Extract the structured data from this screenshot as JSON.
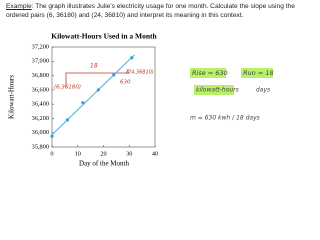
{
  "example": {
    "label": "Example",
    "text": ": The graph illustrates Julie's electricity usage for one month. Calculate the slope using the ordered pairs (6, 36180) and (24, 36810) and interpret its meaning in this context."
  },
  "chart_data": {
    "type": "scatter",
    "title": "Kilowatt-Hours Used in a Month",
    "x_label": "Day of the Month",
    "y_label": "Kilowatt-Hours",
    "xlim": [
      0,
      40
    ],
    "xticks": [
      0,
      10,
      20,
      30,
      40
    ],
    "ylim": [
      35800,
      37200
    ],
    "yticks": [
      {
        "value": 35800,
        "label": "35,800"
      },
      {
        "value": 36000,
        "label": "36,000"
      },
      {
        "value": 36200,
        "label": "36,200"
      },
      {
        "value": 36400,
        "label": "36,400"
      },
      {
        "value": 36600,
        "label": "36,600"
      },
      {
        "value": 36800,
        "label": "36,800"
      },
      {
        "value": 37000,
        "label": "37,000"
      },
      {
        "value": 37200,
        "label": "37,200"
      }
    ],
    "grid": false,
    "series": [
      {
        "color": "#3a9fd6",
        "x": [
          0,
          6,
          12,
          18,
          24,
          31
        ],
        "values": [
          35950,
          36180,
          36420,
          36600,
          36810,
          37050
        ]
      }
    ],
    "trendline": {
      "color": "#5ab4e0",
      "x": [
        0,
        32
      ],
      "values": [
        35970,
        37090
      ]
    }
  },
  "annotations": [
    "(6,36180)",
    "18",
    "630",
    "(24,36810)",
    "Rise = 630",
    "Run = 18",
    "kilowatt-hours",
    "days",
    "m = 630 kwh / 18 days"
  ]
}
